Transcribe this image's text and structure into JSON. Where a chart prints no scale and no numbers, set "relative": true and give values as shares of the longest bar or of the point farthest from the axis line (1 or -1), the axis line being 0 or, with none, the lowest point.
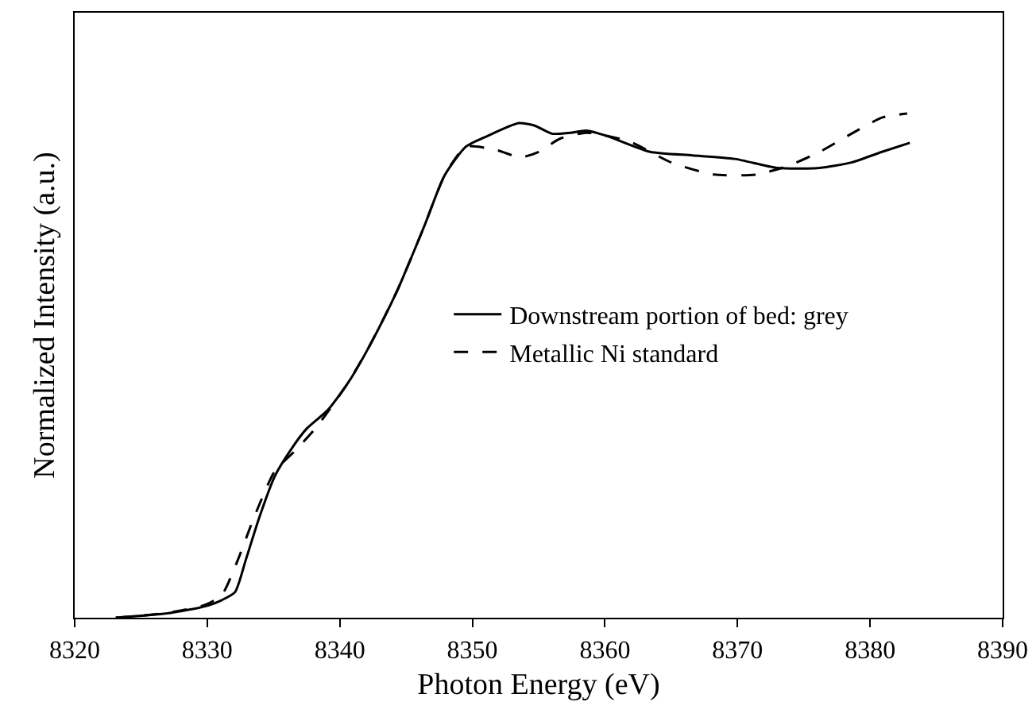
{
  "chart_data": {
    "type": "line",
    "relative": true,
    "xlabel": "Photon Energy (eV)",
    "ylabel": "Normalized Intensity (a.u.)",
    "xlim": [
      8320,
      8390
    ],
    "xticks": [
      8320,
      8330,
      8340,
      8350,
      8360,
      8370,
      8380,
      8390
    ],
    "grid": false,
    "legend": "right",
    "marker": "none",
    "tick_labels": "x",
    "series": [
      {
        "name": "Downstream portion of bed: grey",
        "color": "#000000",
        "line_style": "solid",
        "x": [
          8323.1,
          8327.1,
          8329.9,
          8331.1,
          8332.1,
          8332.9,
          8333.9,
          8335.1,
          8336.3,
          8337.5,
          8339.1,
          8340.7,
          8342.3,
          8344.3,
          8346.3,
          8347.9,
          8349.5,
          8351.1,
          8353.5,
          8354.7,
          8356.0,
          8357.4,
          8358.6,
          8360.2,
          8363.4,
          8366.6,
          8369.8,
          8373.0,
          8376.2,
          8378.6,
          8380.9,
          8383.0
        ],
        "values": [
          0,
          0.009,
          0.023,
          0.035,
          0.051,
          0.114,
          0.197,
          0.281,
          0.333,
          0.375,
          0.412,
          0.469,
          0.542,
          0.647,
          0.772,
          0.877,
          0.934,
          0.955,
          0.981,
          0.976,
          0.96,
          0.962,
          0.966,
          0.955,
          0.924,
          0.917,
          0.91,
          0.892,
          0.892,
          0.903,
          0.924,
          0.942
        ]
      },
      {
        "name": "Metallic Ni standard",
        "color": "#000000",
        "line_style": "dashed",
        "x": [
          8323.1,
          8327.1,
          8329.9,
          8331.1,
          8332.3,
          8333.5,
          8335.1,
          8336.7,
          8338.3,
          8340.7,
          8342.3,
          8344.3,
          8346.3,
          8347.9,
          8349.5,
          8351.9,
          8353.6,
          8355.0,
          8356.6,
          8358.6,
          8361.8,
          8365.0,
          8368.2,
          8371.4,
          8373.8,
          8376.2,
          8378.6,
          8380.9,
          8382.8
        ],
        "values": [
          0,
          0.01,
          0.026,
          0.045,
          0.114,
          0.197,
          0.291,
          0.333,
          0.38,
          0.469,
          0.542,
          0.647,
          0.772,
          0.877,
          0.934,
          0.927,
          0.913,
          0.924,
          0.95,
          0.962,
          0.945,
          0.903,
          0.879,
          0.879,
          0.896,
          0.924,
          0.96,
          0.992,
          1.0
        ]
      }
    ]
  }
}
